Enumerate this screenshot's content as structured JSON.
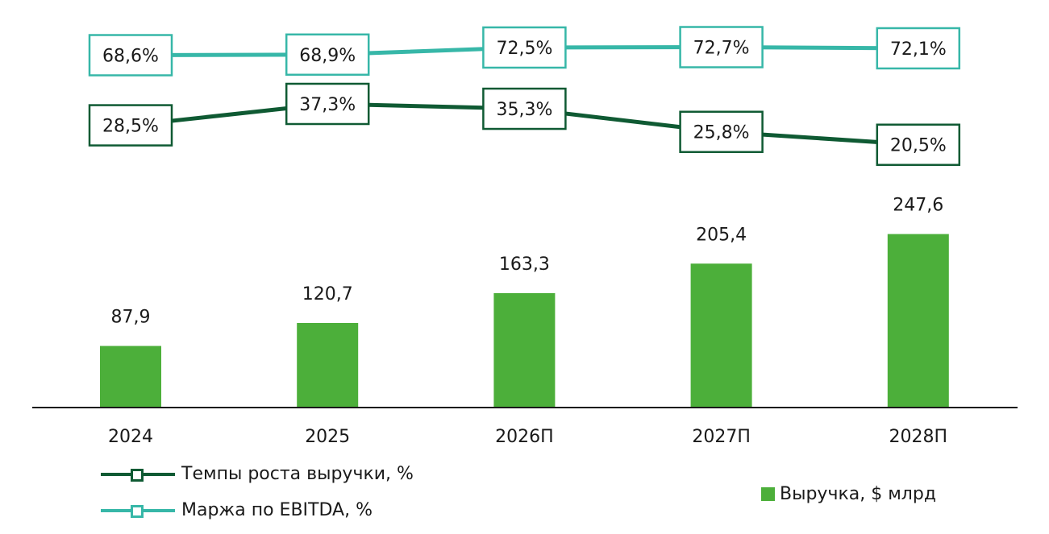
{
  "chart_data": {
    "type": "bar",
    "categories": [
      "2024",
      "2025",
      "2026П",
      "2027П",
      "2028П"
    ],
    "series": [
      {
        "name": "Выручка, $ млрд",
        "type": "bar",
        "values": [
          87.9,
          120.7,
          163.3,
          205.4,
          247.6
        ],
        "labels": [
          "87,9",
          "120,7",
          "163,3",
          "205,4",
          "247,6"
        ],
        "color": "#4caf3a"
      },
      {
        "name": "Темпы роста выручки, %",
        "type": "line",
        "values": [
          28.5,
          37.3,
          35.3,
          25.8,
          20.5
        ],
        "labels": [
          "28,5%",
          "37,3%",
          "35,3%",
          "25,8%",
          "20,5%"
        ],
        "color": "#0f5a33"
      },
      {
        "name": "Маржа по EBITDA, %",
        "type": "line",
        "values": [
          68.6,
          68.9,
          72.5,
          72.7,
          72.1
        ],
        "labels": [
          "68,6%",
          "68,9%",
          "72,5%",
          "72,7%",
          "72,1%"
        ],
        "color": "#37b7a8"
      }
    ],
    "ylim": [
      0,
      300
    ],
    "grid": false,
    "legend_position": "bottom"
  },
  "legend": {
    "growth_label": "Темпы роста выручки, %",
    "ebitda_label": "Маржа по EBITDA, %",
    "revenue_label": "Выручка, $ млрд"
  }
}
